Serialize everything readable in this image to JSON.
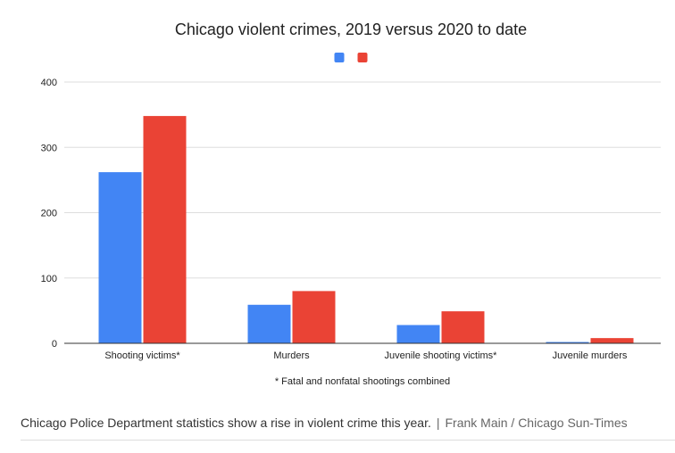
{
  "chart_data": {
    "type": "bar",
    "title": "Chicago violent crimes, 2019 versus 2020 to date",
    "categories": [
      "Shooting victims*",
      "Murders",
      "Juvenile shooting victims*",
      "Juvenile murders"
    ],
    "series": [
      {
        "color": "#4285f4",
        "values": [
          262,
          59,
          28,
          2
        ]
      },
      {
        "color": "#ea4335",
        "values": [
          348,
          80,
          49,
          8
        ]
      }
    ],
    "ylim": [
      0,
      400
    ],
    "yticks": [
      0,
      100,
      200,
      300,
      400
    ],
    "grid": true,
    "legend_position": "top",
    "footnote": "* Fatal and nonfatal shootings combined"
  },
  "caption": {
    "text": "Chicago Police Department statistics show a rise in violent crime this year.",
    "separator": "|",
    "credit": "Frank Main / Chicago Sun-Times"
  }
}
